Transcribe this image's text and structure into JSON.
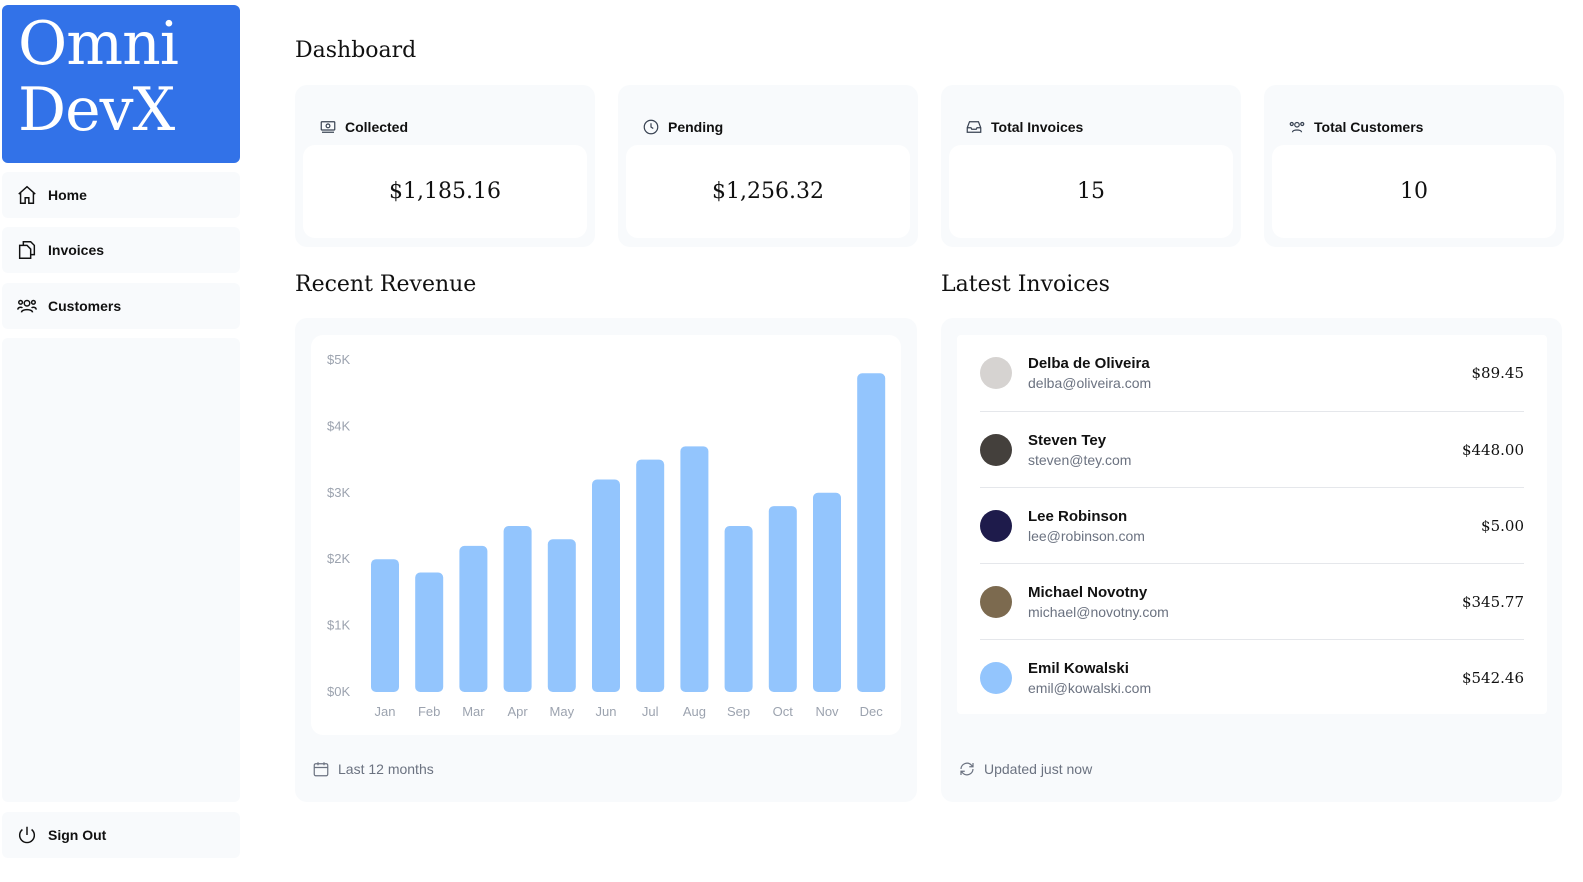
{
  "sidebar": {
    "logo": "Omni DevX",
    "logo_line1": "Omni",
    "logo_line2": "DevX",
    "brand_color": "#3272e8",
    "items": [
      {
        "label": "Home",
        "icon": "home-icon"
      },
      {
        "label": "Invoices",
        "icon": "document-duplicate-icon"
      },
      {
        "label": "Customers",
        "icon": "user-group-icon"
      }
    ],
    "sign_out": "Sign Out"
  },
  "page_title": "Dashboard",
  "cards": [
    {
      "title": "Collected",
      "value": "$1,185.16",
      "icon": "banknotes-icon"
    },
    {
      "title": "Pending",
      "value": "$1,256.32",
      "icon": "clock-icon"
    },
    {
      "title": "Total Invoices",
      "value": "15",
      "icon": "inbox-icon"
    },
    {
      "title": "Total Customers",
      "value": "10",
      "icon": "user-group-icon"
    }
  ],
  "revenue": {
    "title": "Recent Revenue",
    "footer": "Last 12 months"
  },
  "chart_data": {
    "type": "bar",
    "categories": [
      "Jan",
      "Feb",
      "Mar",
      "Apr",
      "May",
      "Jun",
      "Jul",
      "Aug",
      "Sep",
      "Oct",
      "Nov",
      "Dec"
    ],
    "values": [
      2000,
      1800,
      2200,
      2500,
      2300,
      3200,
      3500,
      3700,
      2500,
      2800,
      3000,
      4800
    ],
    "yticks": [
      "$5K",
      "$4K",
      "$3K",
      "$2K",
      "$1K",
      "$0K"
    ],
    "ylim": [
      0,
      5000
    ],
    "bar_color": "#93c5fd",
    "grid": false
  },
  "invoices": {
    "title": "Latest Invoices",
    "footer": "Updated just now",
    "items": [
      {
        "name": "Delba de Oliveira",
        "email": "delba@oliveira.com",
        "amount": "$89.45",
        "avatar_color": "#d6d3d1"
      },
      {
        "name": "Steven Tey",
        "email": "steven@tey.com",
        "amount": "$448.00",
        "avatar_color": "#44403c"
      },
      {
        "name": "Lee Robinson",
        "email": "lee@robinson.com",
        "amount": "$5.00",
        "avatar_color": "#1e1b4b"
      },
      {
        "name": "Michael Novotny",
        "email": "michael@novotny.com",
        "amount": "$345.77",
        "avatar_color": "#7c6a4f"
      },
      {
        "name": "Emil Kowalski",
        "email": "emil@kowalski.com",
        "amount": "$542.46",
        "avatar_color": "#93c5fd"
      }
    ]
  }
}
